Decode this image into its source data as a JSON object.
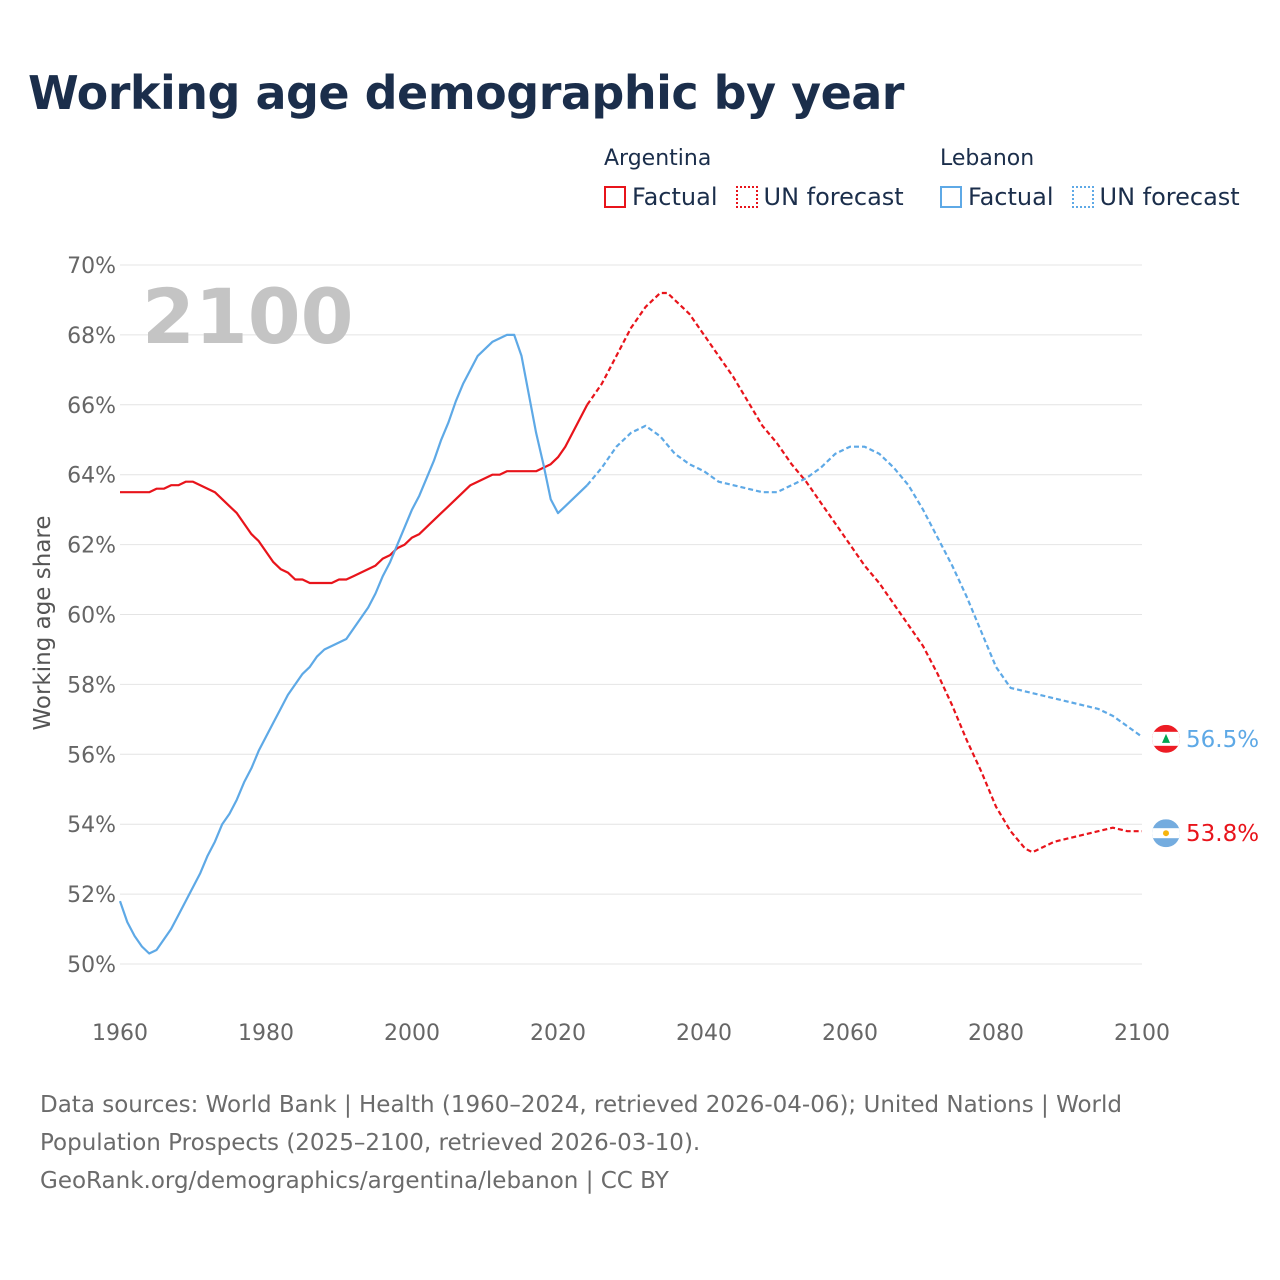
{
  "title": "Working age demographic by year",
  "legend": {
    "groups": [
      {
        "name": "Argentina",
        "factual_label": "Factual",
        "forecast_label": "UN forecast",
        "color": "#e8141b"
      },
      {
        "name": "Lebanon",
        "factual_label": "Factual",
        "forecast_label": "UN forecast",
        "color": "#5ea9e6"
      }
    ]
  },
  "source": {
    "line1": "Data sources: World Bank | Health (1960–2024, retrieved 2026-04-06); United Nations | World Population Prospects (2025–2100, retrieved 2026-03-10).",
    "line2": "GeoRank.org/demographics/argentina/lebanon | CC BY"
  },
  "chart_data": {
    "type": "line",
    "title": "Working age demographic by year",
    "xlabel": "",
    "ylabel": "Working age share",
    "year_watermark": "2100",
    "xlim": [
      1960,
      2100
    ],
    "ylim": [
      50,
      70
    ],
    "x_ticks": [
      "1960",
      "1980",
      "2000",
      "2020",
      "2040",
      "2060",
      "2080",
      "2100"
    ],
    "y_ticks": [
      "50%",
      "52%",
      "54%",
      "56%",
      "58%",
      "60%",
      "62%",
      "64%",
      "66%",
      "68%",
      "70%"
    ],
    "grid": true,
    "series": [
      {
        "name": "Argentina",
        "color": "#e8141b",
        "end_label": "53.8%",
        "factual": {
          "x": [
            1960,
            1961,
            1962,
            1963,
            1964,
            1965,
            1966,
            1967,
            1968,
            1969,
            1970,
            1971,
            1972,
            1973,
            1974,
            1975,
            1976,
            1977,
            1978,
            1979,
            1980,
            1981,
            1982,
            1983,
            1984,
            1985,
            1986,
            1987,
            1988,
            1989,
            1990,
            1991,
            1992,
            1993,
            1994,
            1995,
            1996,
            1997,
            1998,
            1999,
            2000,
            2001,
            2002,
            2003,
            2004,
            2005,
            2006,
            2007,
            2008,
            2009,
            2010,
            2011,
            2012,
            2013,
            2014,
            2015,
            2016,
            2017,
            2018,
            2019,
            2020,
            2021,
            2022,
            2023,
            2024
          ],
          "y": [
            63.5,
            63.5,
            63.5,
            63.5,
            63.5,
            63.6,
            63.6,
            63.7,
            63.7,
            63.8,
            63.8,
            63.7,
            63.6,
            63.5,
            63.3,
            63.1,
            62.9,
            62.6,
            62.3,
            62.1,
            61.8,
            61.5,
            61.3,
            61.2,
            61.0,
            61.0,
            60.9,
            60.9,
            60.9,
            60.9,
            61.0,
            61.0,
            61.1,
            61.2,
            61.3,
            61.4,
            61.6,
            61.7,
            61.9,
            62.0,
            62.2,
            62.3,
            62.5,
            62.7,
            62.9,
            63.1,
            63.3,
            63.5,
            63.7,
            63.8,
            63.9,
            64.0,
            64.0,
            64.1,
            64.1,
            64.1,
            64.1,
            64.1,
            64.2,
            64.3,
            64.5,
            64.8,
            65.2,
            65.6,
            66.0
          ]
        },
        "forecast": {
          "x": [
            2024,
            2026,
            2028,
            2030,
            2032,
            2034,
            2035,
            2036,
            2038,
            2040,
            2042,
            2044,
            2046,
            2048,
            2050,
            2052,
            2054,
            2056,
            2058,
            2060,
            2062,
            2064,
            2066,
            2068,
            2070,
            2072,
            2074,
            2076,
            2078,
            2080,
            2082,
            2084,
            2085,
            2086,
            2088,
            2090,
            2092,
            2094,
            2096,
            2098,
            2100
          ],
          "y": [
            66.0,
            66.6,
            67.4,
            68.2,
            68.8,
            69.2,
            69.2,
            69.0,
            68.6,
            68.0,
            67.4,
            66.8,
            66.1,
            65.4,
            64.9,
            64.3,
            63.8,
            63.2,
            62.6,
            62.0,
            61.4,
            60.9,
            60.3,
            59.7,
            59.1,
            58.3,
            57.4,
            56.4,
            55.5,
            54.5,
            53.8,
            53.3,
            53.2,
            53.3,
            53.5,
            53.6,
            53.7,
            53.8,
            53.9,
            53.8,
            53.8
          ]
        }
      },
      {
        "name": "Lebanon",
        "color": "#5ea9e6",
        "end_label": "56.5%",
        "factual": {
          "x": [
            1960,
            1961,
            1962,
            1963,
            1964,
            1965,
            1966,
            1967,
            1968,
            1969,
            1970,
            1971,
            1972,
            1973,
            1974,
            1975,
            1976,
            1977,
            1978,
            1979,
            1980,
            1981,
            1982,
            1983,
            1984,
            1985,
            1986,
            1987,
            1988,
            1989,
            1990,
            1991,
            1992,
            1993,
            1994,
            1995,
            1996,
            1997,
            1998,
            1999,
            2000,
            2001,
            2002,
            2003,
            2004,
            2005,
            2006,
            2007,
            2008,
            2009,
            2010,
            2011,
            2012,
            2013,
            2014,
            2015,
            2016,
            2017,
            2018,
            2019,
            2020,
            2021,
            2022,
            2023,
            2024
          ],
          "y": [
            51.8,
            51.2,
            50.8,
            50.5,
            50.3,
            50.4,
            50.7,
            51.0,
            51.4,
            51.8,
            52.2,
            52.6,
            53.1,
            53.5,
            54.0,
            54.3,
            54.7,
            55.2,
            55.6,
            56.1,
            56.5,
            56.9,
            57.3,
            57.7,
            58.0,
            58.3,
            58.5,
            58.8,
            59.0,
            59.1,
            59.2,
            59.3,
            59.6,
            59.9,
            60.2,
            60.6,
            61.1,
            61.5,
            62.0,
            62.5,
            63.0,
            63.4,
            63.9,
            64.4,
            65.0,
            65.5,
            66.1,
            66.6,
            67.0,
            67.4,
            67.6,
            67.8,
            67.9,
            68.0,
            68.0,
            67.4,
            66.3,
            65.2,
            64.3,
            63.3,
            62.9,
            63.1,
            63.3,
            63.5,
            63.7
          ]
        },
        "forecast": {
          "x": [
            2024,
            2026,
            2028,
            2030,
            2032,
            2034,
            2036,
            2038,
            2040,
            2042,
            2044,
            2046,
            2048,
            2050,
            2052,
            2054,
            2056,
            2058,
            2060,
            2062,
            2064,
            2066,
            2068,
            2070,
            2072,
            2074,
            2076,
            2078,
            2080,
            2082,
            2084,
            2086,
            2088,
            2090,
            2092,
            2094,
            2096,
            2098,
            2100
          ],
          "y": [
            63.7,
            64.2,
            64.8,
            65.2,
            65.4,
            65.1,
            64.6,
            64.3,
            64.1,
            63.8,
            63.7,
            63.6,
            63.5,
            63.5,
            63.7,
            63.9,
            64.2,
            64.6,
            64.8,
            64.8,
            64.6,
            64.2,
            63.7,
            63.0,
            62.2,
            61.4,
            60.5,
            59.5,
            58.5,
            57.9,
            57.8,
            57.7,
            57.6,
            57.5,
            57.4,
            57.3,
            57.1,
            56.8,
            56.5
          ]
        }
      }
    ]
  }
}
